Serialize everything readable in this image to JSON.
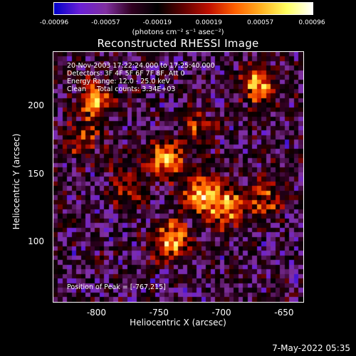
{
  "colorbar": {
    "ticks": [
      "-0.00096",
      "-0.00057",
      "-0.00019",
      "0.00019",
      "0.00057",
      "0.00096"
    ],
    "unit_label": "(photons cm⁻² s⁻¹ asec⁻²)"
  },
  "chart_data": {
    "type": "heatmap",
    "title": "Reconstructed RHESSI Image",
    "xlabel": "Heliocentric X (arcsec)",
    "ylabel": "Heliocentric Y (arcsec)",
    "xlim": [
      -835,
      -634
    ],
    "ylim": [
      55,
      240
    ],
    "xticks": [
      "-800",
      "-750",
      "-700",
      "-650"
    ],
    "xtick_values": [
      -800,
      -750,
      -700,
      -650
    ],
    "yticks": [
      "100",
      "150",
      "200"
    ],
    "ytick_values": [
      100,
      150,
      200
    ],
    "colormap": [
      "#0000c8",
      "#6a1fd6",
      "#8030a0",
      "#300020",
      "#000000",
      "#600000",
      "#c01000",
      "#ff6000",
      "#ffb020",
      "#ffff60",
      "#ffffff"
    ],
    "color_range": [
      -0.00096,
      0.00096
    ],
    "peak_position": [
      -767,
      215
    ],
    "bright_regions": [
      {
        "x": -740,
        "y": 100,
        "level": 0.9
      },
      {
        "x": -715,
        "y": 135,
        "level": 0.85
      },
      {
        "x": -745,
        "y": 160,
        "level": 0.8
      },
      {
        "x": -800,
        "y": 205,
        "level": 0.75
      },
      {
        "x": -670,
        "y": 215,
        "level": 0.8
      },
      {
        "x": -695,
        "y": 125,
        "level": 0.75
      },
      {
        "x": -665,
        "y": 130,
        "level": 0.55
      },
      {
        "x": -775,
        "y": 140,
        "level": 0.5
      },
      {
        "x": -810,
        "y": 175,
        "level": 0.45
      },
      {
        "x": -720,
        "y": 185,
        "level": 0.45
      }
    ],
    "annotations": {
      "time": "20-Nov-2003 17:22:24.000 to 17:25:40.000",
      "detectors": "Detectors: 3F 4F 5F 6F 7F 8F, Att 0",
      "energy": "Energy Range: 12.0 - 25.0 keV",
      "clean": "Clean     Total counts: 3.34E+03",
      "peak": "Position of Peak = [-767,215]"
    }
  },
  "timestamp": "7-May-2022 05:35"
}
